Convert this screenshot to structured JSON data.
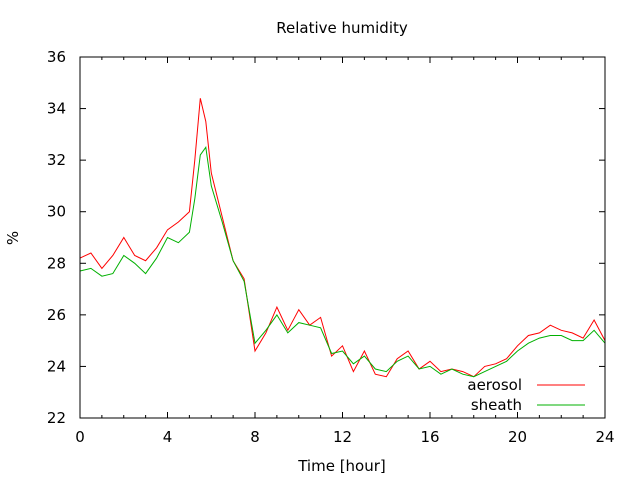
{
  "chart_data": {
    "type": "line",
    "title": "Relative humidity",
    "xlabel": "Time [hour]",
    "ylabel": "%",
    "xlim": [
      0,
      24
    ],
    "ylim": [
      22,
      36
    ],
    "xticks": [
      0,
      4,
      8,
      12,
      16,
      20,
      24
    ],
    "yticks": [
      22,
      24,
      26,
      28,
      30,
      32,
      34,
      36
    ],
    "grid": false,
    "legend_position": "bottom-right",
    "series": [
      {
        "name": "aerosol",
        "color": "#ff0000",
        "x": [
          0,
          0.5,
          1,
          1.5,
          2,
          2.5,
          3,
          3.5,
          4,
          4.5,
          5,
          5.25,
          5.5,
          5.75,
          6,
          6.5,
          7,
          7.5,
          8,
          8.5,
          9,
          9.5,
          10,
          10.5,
          11,
          11.5,
          12,
          12.5,
          13,
          13.5,
          14,
          14.5,
          15,
          15.5,
          16,
          16.5,
          17,
          17.5,
          18,
          18.5,
          19,
          19.5,
          20,
          20.5,
          21,
          21.5,
          22,
          22.5,
          23,
          23.5,
          24
        ],
        "y": [
          28.2,
          28.4,
          27.8,
          28.3,
          29.0,
          28.3,
          28.1,
          28.6,
          29.3,
          29.6,
          30.0,
          32.0,
          34.4,
          33.5,
          31.5,
          29.8,
          28.1,
          27.4,
          24.6,
          25.3,
          26.3,
          25.4,
          26.2,
          25.6,
          25.9,
          24.4,
          24.8,
          23.8,
          24.6,
          23.7,
          23.6,
          24.3,
          24.6,
          23.9,
          24.2,
          23.8,
          23.9,
          23.8,
          23.6,
          24.0,
          24.1,
          24.3,
          24.8,
          25.2,
          25.3,
          25.6,
          25.4,
          25.3,
          25.1,
          25.8,
          25.0
        ]
      },
      {
        "name": "sheath",
        "color": "#00b000",
        "x": [
          0,
          0.5,
          1,
          1.5,
          2,
          2.5,
          3,
          3.5,
          4,
          4.5,
          5,
          5.25,
          5.5,
          5.75,
          6,
          6.5,
          7,
          7.5,
          8,
          8.5,
          9,
          9.5,
          10,
          10.5,
          11,
          11.5,
          12,
          12.5,
          13,
          13.5,
          14,
          14.5,
          15,
          15.5,
          16,
          16.5,
          17,
          17.5,
          18,
          18.5,
          19,
          19.5,
          20,
          20.5,
          21,
          21.5,
          22,
          22.5,
          23,
          23.5,
          24
        ],
        "y": [
          27.7,
          27.8,
          27.5,
          27.6,
          28.3,
          28.0,
          27.6,
          28.2,
          29.0,
          28.8,
          29.2,
          30.5,
          32.2,
          32.5,
          31.0,
          29.6,
          28.1,
          27.3,
          24.9,
          25.4,
          26.0,
          25.3,
          25.7,
          25.6,
          25.5,
          24.5,
          24.6,
          24.1,
          24.4,
          23.9,
          23.8,
          24.2,
          24.4,
          23.9,
          24.0,
          23.7,
          23.9,
          23.7,
          23.6,
          23.8,
          24.0,
          24.2,
          24.6,
          24.9,
          25.1,
          25.2,
          25.2,
          25.0,
          25.0,
          25.4,
          24.9
        ]
      }
    ]
  }
}
